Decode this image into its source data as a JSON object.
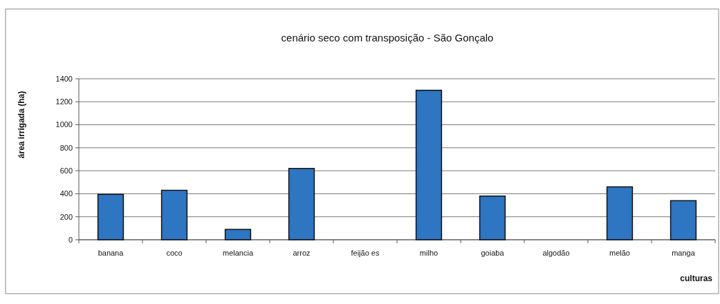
{
  "chart_data": {
    "type": "bar",
    "title": "cenário seco com transposição - São Gonçalo",
    "xlabel": "culturas",
    "ylabel": "área irrigada (ha)",
    "categories": [
      "banana",
      "coco",
      "melancia",
      "arroz",
      "feijão es",
      "milho",
      "goiaba",
      "algodão",
      "melão",
      "manga"
    ],
    "values": [
      395,
      430,
      90,
      620,
      0,
      1300,
      380,
      0,
      460,
      340
    ],
    "color": "#2e75c2",
    "ylim": [
      0,
      1400
    ],
    "yticks": [
      0,
      200,
      400,
      600,
      800,
      1000,
      1200,
      1400
    ],
    "grid": "y"
  }
}
